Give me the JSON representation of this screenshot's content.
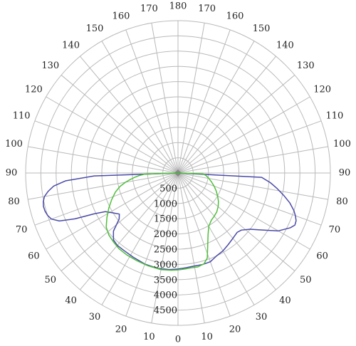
{
  "chart_data": {
    "type": "polar-line",
    "angle_labels_left": [
      "0",
      "10",
      "20",
      "30",
      "40",
      "50",
      "60",
      "70",
      "80",
      "90",
      "100",
      "110",
      "120",
      "130",
      "140",
      "150",
      "160",
      "170",
      "180"
    ],
    "angle_labels_right": [
      "10",
      "20",
      "30",
      "40",
      "50",
      "60",
      "70",
      "80",
      "90",
      "100",
      "110",
      "120",
      "130",
      "140",
      "150",
      "160",
      "170"
    ],
    "angle_step_deg": 10,
    "radial_ticks": [
      "500",
      "1000",
      "1500",
      "2000",
      "2500",
      "3000",
      "3500",
      "4000",
      "4500"
    ],
    "r_max": 5000,
    "grid": true,
    "colors": {
      "grid": "#b9b9b9",
      "blue": "#4a4aa8",
      "green": "#4fbf3a"
    },
    "series": [
      {
        "color": "blue",
        "points": [
          [
            -90,
            0
          ],
          [
            -88,
            2750
          ],
          [
            -86,
            3700
          ],
          [
            -84,
            4100
          ],
          [
            -82,
            4300
          ],
          [
            -80,
            4450
          ],
          [
            -78,
            4520
          ],
          [
            -76,
            4550
          ],
          [
            -74,
            4540
          ],
          [
            -72,
            4500
          ],
          [
            -70,
            4420
          ],
          [
            -68,
            4200
          ],
          [
            -66,
            3700
          ],
          [
            -64,
            3050
          ],
          [
            -62,
            2700
          ],
          [
            -58,
            2480
          ],
          [
            -55,
            2350
          ],
          [
            -52,
            2450
          ],
          [
            -48,
            2850
          ],
          [
            -44,
            3050
          ],
          [
            -40,
            3100
          ],
          [
            -35,
            3100
          ],
          [
            -28,
            3130
          ],
          [
            -20,
            3180
          ],
          [
            -12,
            3200
          ],
          [
            -5,
            3180
          ],
          [
            0,
            3150
          ],
          [
            5,
            3120
          ],
          [
            10,
            3100
          ],
          [
            15,
            3110
          ],
          [
            20,
            3100
          ],
          [
            25,
            3000
          ],
          [
            30,
            2950
          ],
          [
            35,
            2870
          ],
          [
            40,
            2800
          ],
          [
            45,
            2750
          ],
          [
            48,
            2800
          ],
          [
            52,
            3000
          ],
          [
            56,
            3350
          ],
          [
            60,
            3800
          ],
          [
            64,
            4100
          ],
          [
            66,
            4200
          ],
          [
            68,
            4180
          ],
          [
            70,
            4100
          ],
          [
            72,
            4000
          ],
          [
            75,
            3800
          ],
          [
            78,
            3550
          ],
          [
            81,
            3300
          ],
          [
            84,
            3050
          ],
          [
            87,
            2750
          ],
          [
            90,
            0
          ]
        ]
      },
      {
        "color": "green",
        "points": [
          [
            -90,
            0
          ],
          [
            -88,
            1100
          ],
          [
            -86,
            1300
          ],
          [
            -84,
            1450
          ],
          [
            -82,
            1600
          ],
          [
            -80,
            1750
          ],
          [
            -77,
            1950
          ],
          [
            -73,
            2150
          ],
          [
            -68,
            2350
          ],
          [
            -63,
            2550
          ],
          [
            -58,
            2750
          ],
          [
            -53,
            2950
          ],
          [
            -48,
            3050
          ],
          [
            -43,
            3100
          ],
          [
            -38,
            3150
          ],
          [
            -32,
            3170
          ],
          [
            -25,
            3180
          ],
          [
            -18,
            3200
          ],
          [
            -10,
            3220
          ],
          [
            -4,
            3200
          ],
          [
            0,
            3180
          ],
          [
            4,
            3160
          ],
          [
            8,
            3140
          ],
          [
            12,
            3150
          ],
          [
            16,
            3100
          ],
          [
            19,
            2950
          ],
          [
            22,
            2600
          ],
          [
            26,
            2250
          ],
          [
            30,
            2020
          ],
          [
            35,
            1900
          ],
          [
            40,
            1850
          ],
          [
            45,
            1800
          ],
          [
            50,
            1720
          ],
          [
            55,
            1620
          ],
          [
            60,
            1500
          ],
          [
            65,
            1380
          ],
          [
            70,
            1260
          ],
          [
            75,
            1140
          ],
          [
            80,
            1030
          ],
          [
            85,
            920
          ],
          [
            88,
            820
          ],
          [
            90,
            0
          ]
        ]
      }
    ]
  }
}
